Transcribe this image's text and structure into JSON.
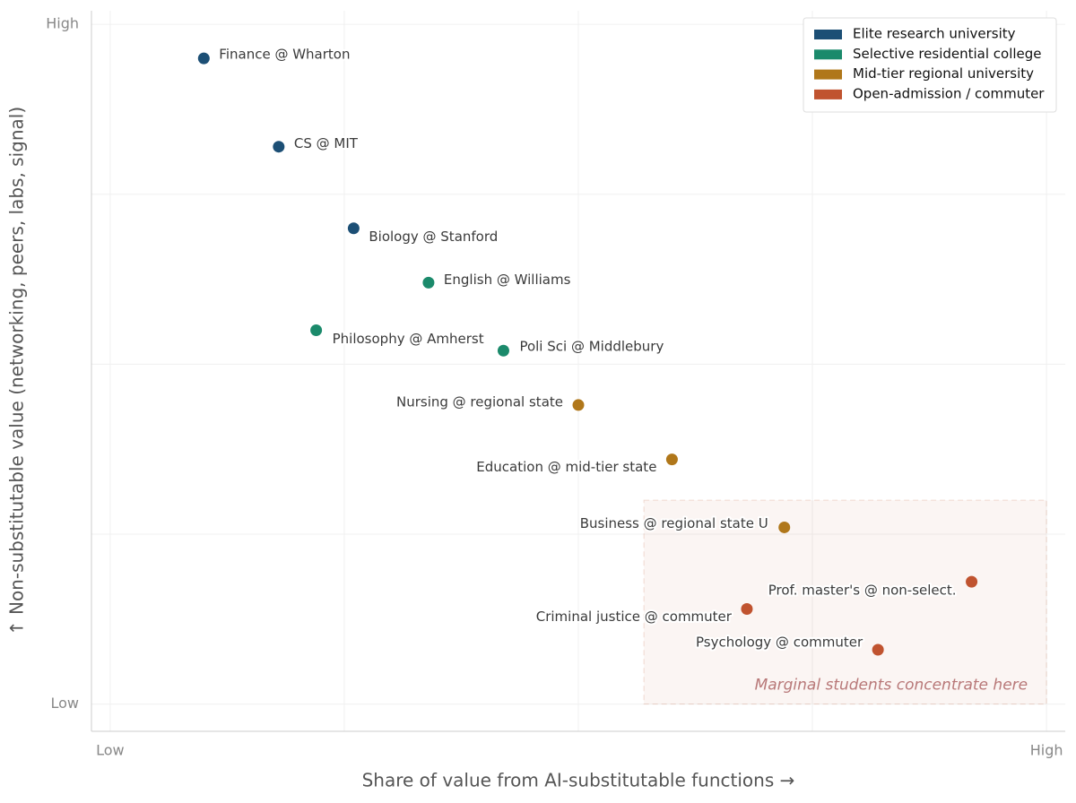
{
  "chart_data": {
    "type": "scatter",
    "xlabel": "Share of value from AI-substitutable functions  →",
    "ylabel": "↑  Non-substitutable value (networking, peers, labs, signal)",
    "xlim": [
      -2,
      102
    ],
    "ylim": [
      -4,
      102
    ],
    "xticks": [
      {
        "value": 0,
        "label": "Low"
      },
      {
        "value": 100,
        "label": "High"
      }
    ],
    "yticks": [
      {
        "value": 0,
        "label": "Low"
      },
      {
        "value": 100,
        "label": "High"
      }
    ],
    "xgrid": [
      0,
      25,
      50,
      75,
      100
    ],
    "ygrid": [
      0,
      25,
      50,
      75,
      100
    ],
    "grid": true,
    "legend": "upper right",
    "series": [
      {
        "name": "Elite research university",
        "color": "#1c4f75",
        "labels": [
          "Finance @ Wharton",
          "CS @ MIT",
          "Biology @ Stanford"
        ],
        "x": [
          10,
          18,
          26
        ],
        "values": [
          95,
          82,
          70
        ]
      },
      {
        "name": "Selective residential college",
        "color": "#1b8a6b",
        "labels": [
          "English @ Williams",
          "Philosophy @ Amherst",
          "Poli Sci @ Middlebury"
        ],
        "x": [
          34,
          22,
          42
        ],
        "values": [
          62,
          55,
          52
        ]
      },
      {
        "name": "Mid-tier regional university",
        "color": "#b0771a",
        "labels": [
          "Nursing @ regional state",
          "Education @ mid-tier state",
          "Business @ regional state U"
        ],
        "x": [
          50,
          60,
          72
        ],
        "values": [
          44,
          36,
          26
        ]
      },
      {
        "name": "Open-admission / commuter",
        "color": "#c0532f",
        "labels": [
          "Prof. master's @ non-select.",
          "Criminal justice @ commuter",
          "Psychology @ commuter"
        ],
        "x": [
          92,
          68,
          82
        ],
        "values": [
          18,
          14,
          8
        ]
      }
    ],
    "highlight": {
      "x": [
        57,
        100
      ],
      "y": [
        0,
        30
      ],
      "label": "Marginal students concentrate here",
      "color": "#c0532f"
    }
  }
}
